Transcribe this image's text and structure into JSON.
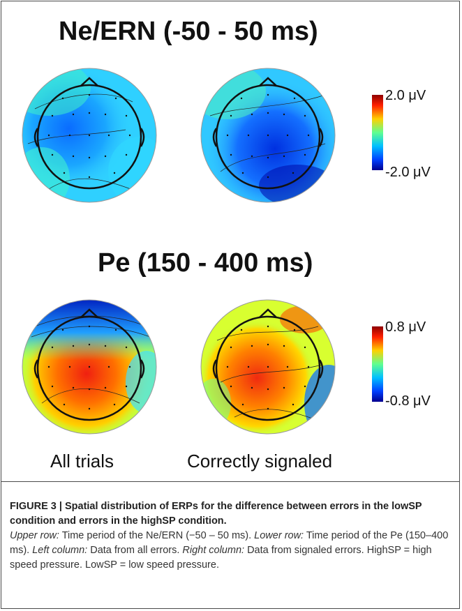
{
  "figure": {
    "top_title": "Ne/ERN (-50 - 50 ms)",
    "bottom_title": "Pe (150 - 400 ms)",
    "top_scale": {
      "max": "2.0 μV",
      "min": "-2.0 μV"
    },
    "bottom_scale": {
      "max": "0.8 μV",
      "min": "-0.8 μV"
    },
    "col_left": "All trials",
    "col_right": "Correctly signaled",
    "colormap": [
      "#00008f",
      "#0040ff",
      "#00bfff",
      "#40ffbf",
      "#bfff40",
      "#ffbf00",
      "#ff4000",
      "#8f0000"
    ]
  },
  "caption": {
    "fig_label": "FIGURE 3 | Spatial distribution of ERPs for the difference between errors in the lowSP condition and errors in the highSP condition.",
    "p1_label": "Upper row:",
    "p1_text": " Time period of the Ne/ERN (−50 – 50 ms). ",
    "p2_label": "Lower row:",
    "p2_text": " Time period of the Pe (150–400 ms). ",
    "p3_label": "Left column:",
    "p3_text": " Data from all errors. ",
    "p4_label": "Right column:",
    "p4_text": " Data from signaled errors. HighSP = high speed pressure. LowSP = low speed pressure."
  }
}
